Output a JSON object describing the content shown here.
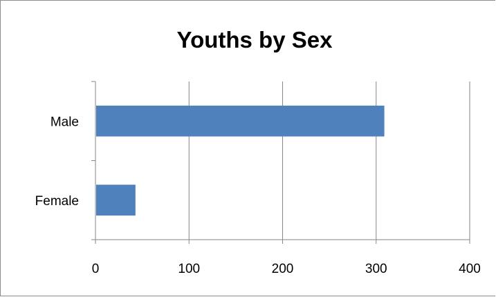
{
  "chart_data": {
    "type": "bar",
    "orientation": "horizontal",
    "title": "Youths by Sex",
    "categories": [
      "Male",
      "Female"
    ],
    "values": [
      308,
      42
    ],
    "xlim": [
      0,
      400
    ],
    "x_ticks": [
      0,
      100,
      200,
      300,
      400
    ],
    "xlabel": "",
    "ylabel": "",
    "grid": "vertical major gridlines",
    "legend": "none",
    "bar_color": "#4F81BD"
  }
}
